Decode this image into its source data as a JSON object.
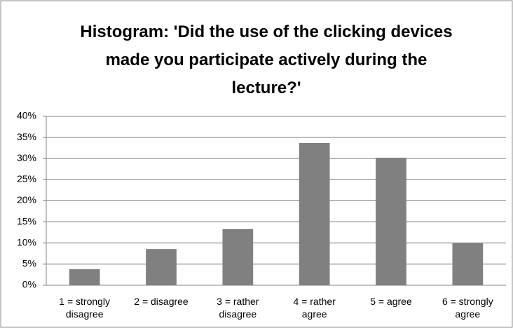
{
  "chart_data": {
    "type": "bar",
    "title": "Histogram: 'Did the use of the clicking devices made you participate actively during the lecture?'",
    "categories": [
      "1 = strongly disagree",
      "2 = disagree",
      "3 = rather disagree",
      "4 = rather agree",
      "5 = agree",
      "6 = strongly agree"
    ],
    "values": [
      3.8,
      8.6,
      13.3,
      33.7,
      30.2,
      10.0
    ],
    "color": "#808080",
    "ylim": [
      0,
      40
    ],
    "yticks": [
      {
        "value": 0,
        "label": "0%"
      },
      {
        "value": 5,
        "label": "5%"
      },
      {
        "value": 10,
        "label": "10%"
      },
      {
        "value": 15,
        "label": "15%"
      },
      {
        "value": 20,
        "label": "20%"
      },
      {
        "value": 25,
        "label": "25%"
      },
      {
        "value": 30,
        "label": "30%"
      },
      {
        "value": 35,
        "label": "35%"
      },
      {
        "value": 40,
        "label": "40%"
      }
    ],
    "grid": true
  }
}
